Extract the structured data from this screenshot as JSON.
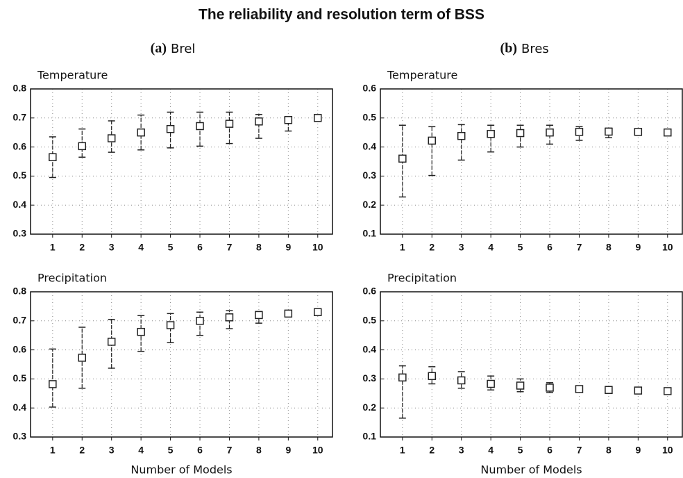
{
  "title": "The reliability and resolution term of BSS",
  "column_titles": [
    {
      "letter": "(a)",
      "name": "Brel"
    },
    {
      "letter": "(b)",
      "name": "Bres"
    }
  ],
  "chart_data": [
    {
      "type": "errorbar",
      "title": "Temperature",
      "x": [
        1,
        2,
        3,
        4,
        5,
        6,
        7,
        8,
        9,
        10
      ],
      "values": [
        0.565,
        0.603,
        0.63,
        0.65,
        0.662,
        0.672,
        0.68,
        0.688,
        0.693,
        0.7
      ],
      "lower": [
        0.495,
        0.565,
        0.582,
        0.59,
        0.597,
        0.603,
        0.612,
        0.63,
        0.655,
        null
      ],
      "upper": [
        0.635,
        0.662,
        0.69,
        0.71,
        0.72,
        0.72,
        0.72,
        0.712,
        0.705,
        null
      ],
      "color": "#222222",
      "xlim": [
        0.25,
        10.5
      ],
      "xticks": [
        1,
        2,
        3,
        4,
        5,
        6,
        7,
        8,
        9,
        10
      ],
      "ylim": [
        0.3,
        0.8
      ],
      "yticks": [
        0.3,
        0.4,
        0.5,
        0.6,
        0.7,
        0.8
      ],
      "grid": true
    },
    {
      "type": "errorbar",
      "title": "Temperature",
      "x": [
        1,
        2,
        3,
        4,
        5,
        6,
        7,
        8,
        9,
        10
      ],
      "values": [
        0.36,
        0.422,
        0.438,
        0.445,
        0.448,
        0.45,
        0.452,
        0.453,
        0.452,
        0.45
      ],
      "lower": [
        0.228,
        0.302,
        0.355,
        0.383,
        0.4,
        0.41,
        0.423,
        0.432,
        null,
        null
      ],
      "upper": [
        0.475,
        0.47,
        0.477,
        0.475,
        0.475,
        0.475,
        0.47,
        0.465,
        null,
        null
      ],
      "color": "#222222",
      "xlim": [
        0.25,
        10.5
      ],
      "xticks": [
        1,
        2,
        3,
        4,
        5,
        6,
        7,
        8,
        9,
        10
      ],
      "ylim": [
        0.1,
        0.6
      ],
      "yticks": [
        0.1,
        0.2,
        0.3,
        0.4,
        0.5,
        0.6
      ],
      "grid": true
    },
    {
      "type": "errorbar",
      "title": "Precipitation",
      "xlabel": "Number of Models",
      "x": [
        1,
        2,
        3,
        4,
        5,
        6,
        7,
        8,
        9,
        10
      ],
      "values": [
        0.482,
        0.573,
        0.628,
        0.662,
        0.685,
        0.7,
        0.712,
        0.72,
        0.725,
        0.73
      ],
      "lower": [
        0.403,
        0.468,
        0.537,
        0.595,
        0.625,
        0.65,
        0.673,
        0.692,
        0.715,
        null
      ],
      "upper": [
        0.603,
        0.678,
        0.705,
        0.718,
        0.725,
        0.73,
        0.735,
        0.732,
        0.73,
        null
      ],
      "color": "#222222",
      "xlim": [
        0.25,
        10.5
      ],
      "xticks": [
        1,
        2,
        3,
        4,
        5,
        6,
        7,
        8,
        9,
        10
      ],
      "ylim": [
        0.3,
        0.8
      ],
      "yticks": [
        0.3,
        0.4,
        0.5,
        0.6,
        0.7,
        0.8
      ],
      "grid": true
    },
    {
      "type": "errorbar",
      "title": "Precipitation",
      "xlabel": "Number of Models",
      "x": [
        1,
        2,
        3,
        4,
        5,
        6,
        7,
        8,
        9,
        10
      ],
      "values": [
        0.305,
        0.31,
        0.295,
        0.283,
        0.277,
        0.27,
        0.265,
        0.262,
        0.26,
        0.258
      ],
      "lower": [
        0.165,
        0.283,
        0.268,
        0.262,
        0.256,
        0.253,
        0.255,
        0.254,
        null,
        null
      ],
      "upper": [
        0.345,
        0.342,
        0.325,
        0.31,
        0.3,
        0.287,
        0.275,
        0.268,
        null,
        null
      ],
      "color": "#222222",
      "xlim": [
        0.25,
        10.5
      ],
      "xticks": [
        1,
        2,
        3,
        4,
        5,
        6,
        7,
        8,
        9,
        10
      ],
      "ylim": [
        0.1,
        0.6
      ],
      "yticks": [
        0.1,
        0.2,
        0.3,
        0.4,
        0.5,
        0.6
      ],
      "grid": true
    }
  ]
}
